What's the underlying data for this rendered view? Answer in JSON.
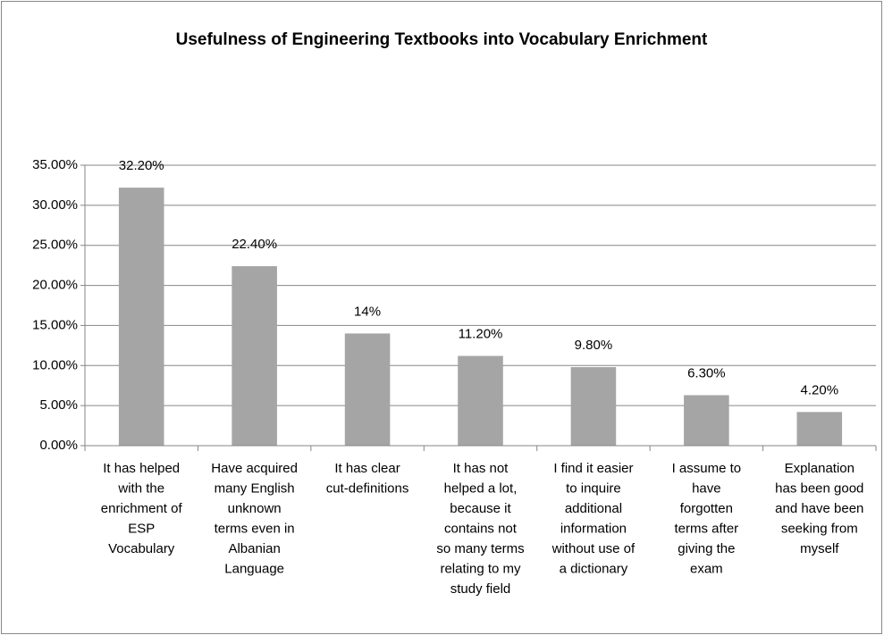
{
  "chart_data": {
    "type": "bar",
    "title": "Usefulness of Engineering Textbooks into  Vocabulary Enrichment",
    "categories": [
      "It has helped\nwith the\nenrichment of\nESP\nVocabulary",
      "Have acquired\nmany English\nunknown\nterms even in\nAlbanian\nLanguage",
      "It has  clear\ncut-definitions",
      "It has not\nhelped a lot,\nbecause it\ncontains not\nso many terms\nrelating to my\nstudy field",
      "I find it easier\nto inquire\nadditional\ninformation\nwithout use of\na dictionary",
      "I assume to\nhave\nforgotten\nterms after\ngiving the\nexam",
      "Explanation\nhas been good\nand have been\nseeking from\nmyself"
    ],
    "values": [
      32.2,
      22.4,
      14,
      11.2,
      9.8,
      6.3,
      4.2
    ],
    "value_labels": [
      "32.20%",
      "22.40%",
      "14%",
      "11.20%",
      "9.80%",
      "6.30%",
      "4.20%"
    ],
    "color": "#a5a5a5",
    "ylim": [
      0,
      35
    ],
    "yticks": [
      {
        "value": 0,
        "label": "0.00%"
      },
      {
        "value": 5,
        "label": "5.00%"
      },
      {
        "value": 10,
        "label": "10.00%"
      },
      {
        "value": 15,
        "label": "15.00%"
      },
      {
        "value": 20,
        "label": "20.00%"
      },
      {
        "value": 25,
        "label": "25.00%"
      },
      {
        "value": 30,
        "label": "30.00%"
      },
      {
        "value": 35,
        "label": "35.00%"
      }
    ],
    "grid": true
  }
}
